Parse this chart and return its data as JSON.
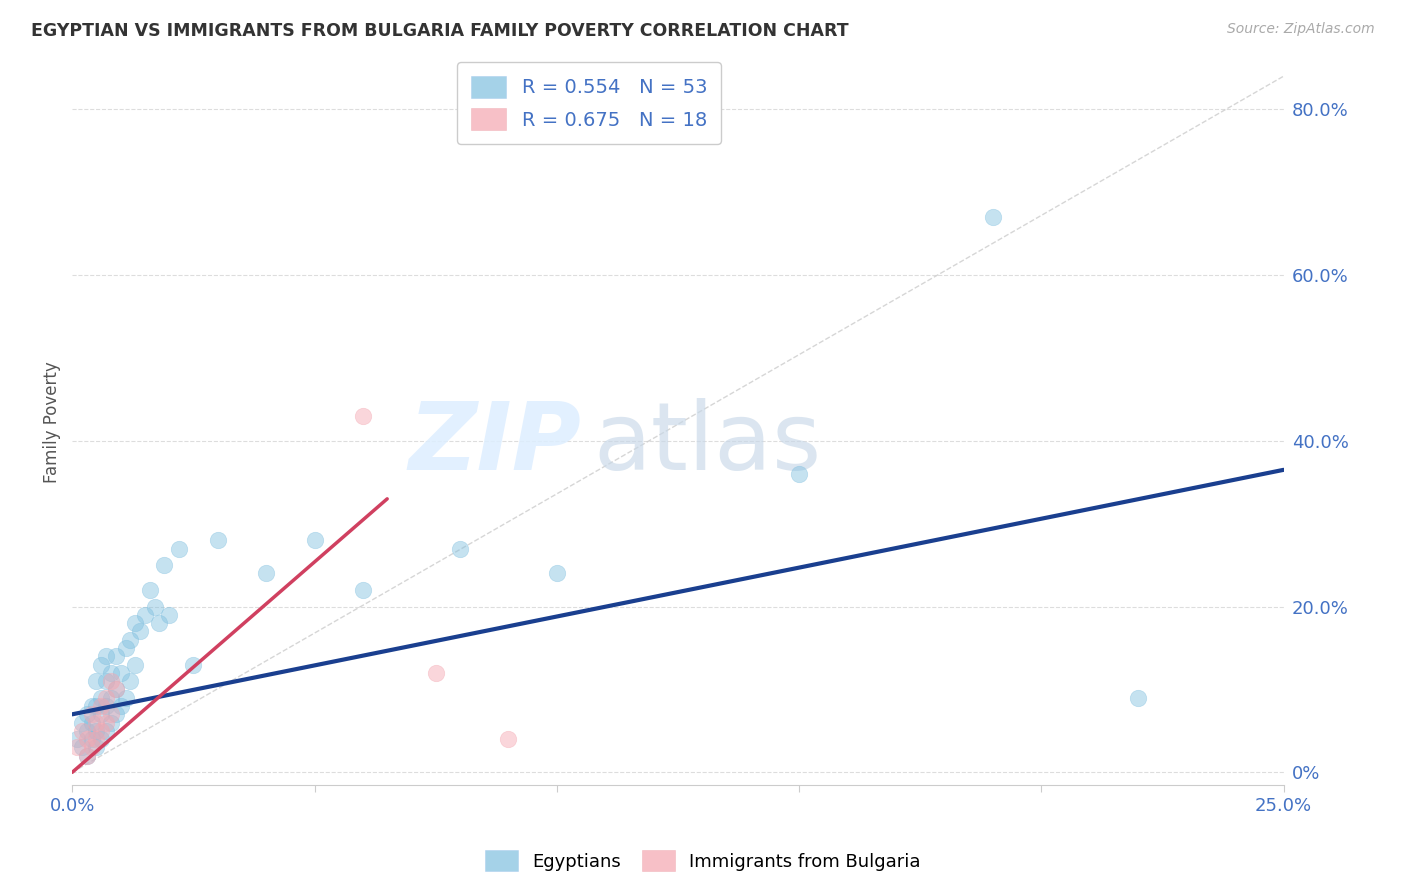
{
  "title": "EGYPTIAN VS IMMIGRANTS FROM BULGARIA FAMILY POVERTY CORRELATION CHART",
  "source": "Source: ZipAtlas.com",
  "ylabel": "Family Poverty",
  "ylabel_right_ticks": [
    "0%",
    "20.0%",
    "40.0%",
    "60.0%",
    "80.0%"
  ],
  "ylabel_right_vals": [
    0.0,
    0.2,
    0.4,
    0.6,
    0.8
  ],
  "xmin": 0.0,
  "xmax": 0.25,
  "ymin": -0.015,
  "ymax": 0.86,
  "legend_r1": "0.554",
  "legend_n1": "53",
  "legend_r2": "0.675",
  "legend_n2": "18",
  "color_egyptian": "#7fbfdf",
  "color_bulgarian": "#f4a6b0",
  "color_line_egyptian": "#1a3f8f",
  "color_line_bulgarian": "#d04060",
  "color_diag": "#cccccc",
  "watermark_zip": "ZIP",
  "watermark_atlas": "atlas",
  "egyptian_x": [
    0.001,
    0.002,
    0.002,
    0.003,
    0.003,
    0.003,
    0.004,
    0.004,
    0.004,
    0.005,
    0.005,
    0.005,
    0.005,
    0.006,
    0.006,
    0.006,
    0.006,
    0.007,
    0.007,
    0.007,
    0.007,
    0.008,
    0.008,
    0.008,
    0.009,
    0.009,
    0.009,
    0.01,
    0.01,
    0.011,
    0.011,
    0.012,
    0.012,
    0.013,
    0.013,
    0.014,
    0.015,
    0.016,
    0.017,
    0.018,
    0.019,
    0.02,
    0.022,
    0.025,
    0.03,
    0.04,
    0.05,
    0.06,
    0.08,
    0.1,
    0.15,
    0.19,
    0.22
  ],
  "egyptian_y": [
    0.04,
    0.03,
    0.06,
    0.02,
    0.05,
    0.07,
    0.04,
    0.06,
    0.08,
    0.03,
    0.05,
    0.08,
    0.11,
    0.04,
    0.07,
    0.09,
    0.13,
    0.05,
    0.08,
    0.11,
    0.14,
    0.06,
    0.09,
    0.12,
    0.07,
    0.1,
    0.14,
    0.08,
    0.12,
    0.09,
    0.15,
    0.11,
    0.16,
    0.13,
    0.18,
    0.17,
    0.19,
    0.22,
    0.2,
    0.18,
    0.25,
    0.19,
    0.27,
    0.13,
    0.28,
    0.24,
    0.28,
    0.22,
    0.27,
    0.24,
    0.36,
    0.67,
    0.09
  ],
  "bulgarian_x": [
    0.001,
    0.002,
    0.003,
    0.003,
    0.004,
    0.004,
    0.005,
    0.005,
    0.006,
    0.006,
    0.007,
    0.007,
    0.008,
    0.008,
    0.009,
    0.06,
    0.075,
    0.09
  ],
  "bulgarian_y": [
    0.03,
    0.05,
    0.02,
    0.04,
    0.03,
    0.07,
    0.04,
    0.06,
    0.05,
    0.08,
    0.06,
    0.09,
    0.07,
    0.11,
    0.1,
    0.43,
    0.12,
    0.04
  ],
  "egyptian_line_x": [
    0.0,
    0.25
  ],
  "egyptian_line_y": [
    0.07,
    0.365
  ],
  "bulgarian_line_x": [
    0.0,
    0.065
  ],
  "bulgarian_line_y": [
    0.0,
    0.33
  ],
  "diag_line_x": [
    0.0,
    0.25
  ],
  "diag_line_y": [
    0.0,
    0.84
  ]
}
